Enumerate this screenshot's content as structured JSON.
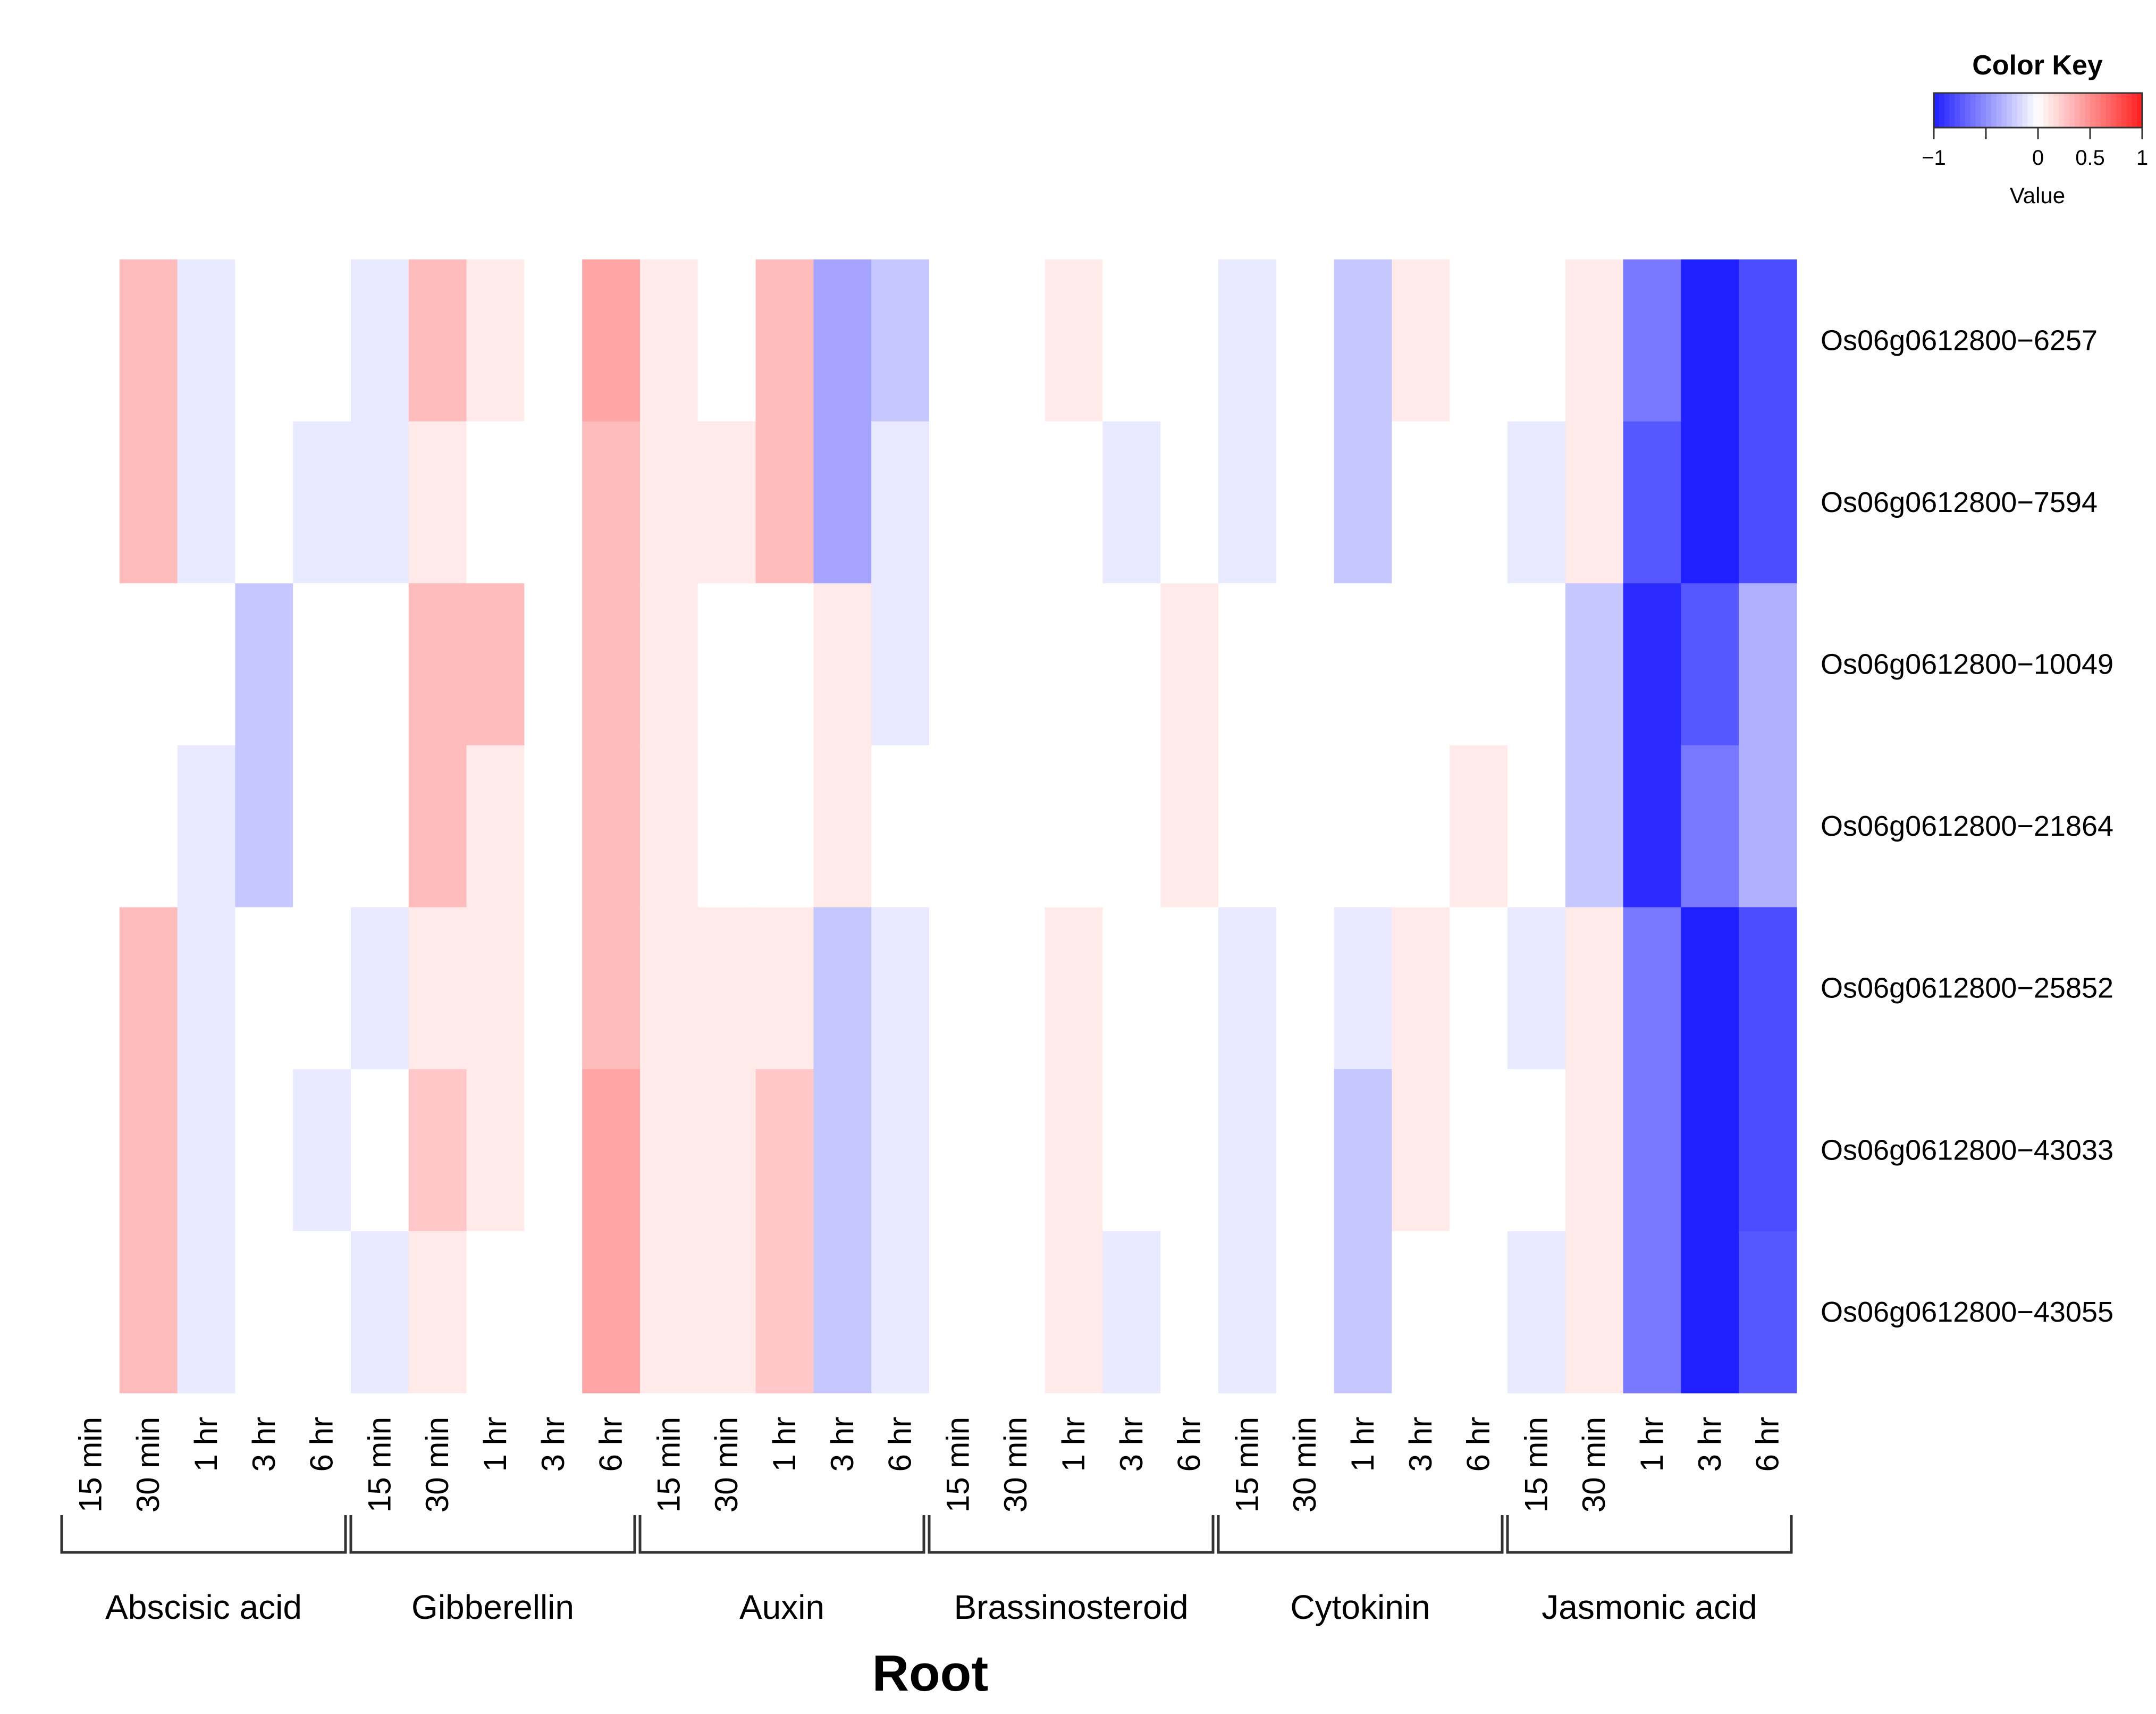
{
  "chart_data": {
    "type": "heatmap",
    "title": "Root",
    "row_labels": [
      "Os06g0612800−6257",
      "Os06g0612800−7594",
      "Os06g0612800−10049",
      "Os06g0612800−21864",
      "Os06g0612800−25852",
      "Os06g0612800−43033",
      "Os06g0612800−43055"
    ],
    "groups": [
      {
        "name": "Abscisic acid",
        "columns": [
          "15 min",
          "30 min",
          "1 hr",
          "3 hr",
          "6 hr"
        ]
      },
      {
        "name": "Gibberellin",
        "columns": [
          "15 min",
          "30 min",
          "1 hr",
          "3 hr",
          "6 hr"
        ]
      },
      {
        "name": "Auxin",
        "columns": [
          "15 min",
          "30 min",
          "1 hr",
          "3 hr",
          "6 hr"
        ]
      },
      {
        "name": "Brassinosteroid",
        "columns": [
          "15 min",
          "30 min",
          "1 hr",
          "3 hr",
          "6 hr"
        ]
      },
      {
        "name": "Cytokinin",
        "columns": [
          "15 min",
          "30 min",
          "1 hr",
          "3 hr",
          "6 hr"
        ]
      },
      {
        "name": "Jasmonic acid",
        "columns": [
          "15 min",
          "30 min",
          "1 hr",
          "3 hr",
          "6 hr"
        ]
      }
    ],
    "values": [
      [
        0,
        0.3,
        -0.1,
        0,
        0,
        -0.1,
        0.3,
        0.1,
        0,
        0.4,
        0.1,
        0,
        0.3,
        -0.4,
        -0.25,
        0,
        0,
        0.1,
        0,
        0,
        -0.1,
        0,
        -0.25,
        0.1,
        0,
        0,
        0.1,
        -0.6,
        -1.0,
        -0.8
      ],
      [
        0,
        0.3,
        -0.1,
        0,
        -0.1,
        -0.1,
        0.1,
        0,
        0,
        0.3,
        0.1,
        0.1,
        0.3,
        -0.4,
        -0.1,
        0,
        0,
        0,
        -0.1,
        0,
        -0.1,
        0,
        -0.25,
        0,
        0,
        -0.1,
        0.1,
        -0.75,
        -1.0,
        -0.8
      ],
      [
        0,
        0,
        0,
        -0.25,
        0,
        0,
        0.3,
        0.3,
        0,
        0.3,
        0.1,
        0,
        0,
        0.1,
        -0.1,
        0,
        0,
        0,
        0,
        0.1,
        0,
        0,
        0,
        0,
        0,
        0,
        -0.25,
        -0.95,
        -0.75,
        -0.35
      ],
      [
        0,
        0,
        -0.1,
        -0.25,
        0,
        0,
        0.3,
        0.1,
        0,
        0.3,
        0.1,
        0,
        0,
        0.1,
        0,
        0,
        0,
        0,
        0,
        0.1,
        0,
        0,
        0,
        0,
        0.1,
        0,
        -0.25,
        -0.95,
        -0.6,
        -0.35
      ],
      [
        0,
        0.3,
        -0.1,
        0,
        0,
        -0.1,
        0.1,
        0.1,
        0,
        0.3,
        0.1,
        0.1,
        0.1,
        -0.25,
        -0.1,
        0,
        0,
        0.1,
        0,
        0,
        -0.1,
        0,
        -0.1,
        0.1,
        0,
        -0.1,
        0.1,
        -0.6,
        -1.0,
        -0.8
      ],
      [
        0,
        0.3,
        -0.1,
        0,
        -0.1,
        0,
        0.25,
        0.1,
        0,
        0.4,
        0.1,
        0.1,
        0.25,
        -0.25,
        -0.1,
        0,
        0,
        0.1,
        0,
        0,
        -0.1,
        0,
        -0.25,
        0.1,
        0,
        0,
        0.1,
        -0.6,
        -1.0,
        -0.8
      ],
      [
        0,
        0.3,
        -0.1,
        0,
        0,
        -0.1,
        0.1,
        0,
        0,
        0.4,
        0.1,
        0.1,
        0.25,
        -0.25,
        -0.1,
        0,
        0,
        0.1,
        -0.1,
        0,
        -0.1,
        0,
        -0.25,
        0,
        0,
        -0.1,
        0.1,
        -0.6,
        -1.0,
        -0.75
      ]
    ],
    "x_axis_title": "Root",
    "legend": {
      "title": "Color Key",
      "xlabel": "Value",
      "range": [
        -1,
        1
      ],
      "ticks": [
        {
          "value": -1,
          "label": "−1"
        },
        {
          "value": -0.5,
          "label": ""
        },
        {
          "value": 0,
          "label": "0"
        },
        {
          "value": 0.5,
          "label": "0.5"
        },
        {
          "value": 1,
          "label": "1"
        }
      ],
      "low_color": "#0000ff",
      "mid_color": "#ffffff",
      "high_color": "#ff0000",
      "placement": "top-right"
    }
  }
}
